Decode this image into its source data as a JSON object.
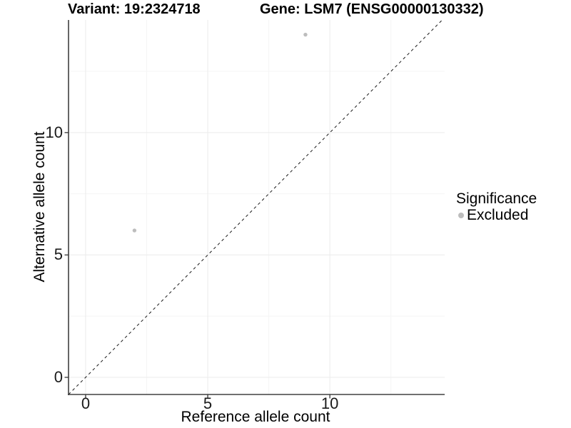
{
  "chart_data": {
    "type": "scatter",
    "titles": {
      "left": "Variant: 19:2324718",
      "right": "Gene: LSM7 (ENSG00000130332)"
    },
    "xlabel": "Reference allele count",
    "ylabel": "Alternative allele count",
    "xlim": [
      -0.7,
      14.7
    ],
    "ylim": [
      -0.7,
      14.6
    ],
    "x_ticks": [
      {
        "value": 0,
        "label": "0"
      },
      {
        "value": 5,
        "label": "5"
      },
      {
        "value": 10,
        "label": "10"
      }
    ],
    "y_ticks": [
      {
        "value": 0,
        "label": "0"
      },
      {
        "value": 5,
        "label": "5"
      },
      {
        "value": 10,
        "label": "10"
      }
    ],
    "x_minor_gridlines": [
      2.5,
      7.5,
      12.5
    ],
    "y_minor_gridlines": [
      2.5,
      7.5,
      12.5
    ],
    "grid": "major+minor",
    "legend_position": "right",
    "series": [
      {
        "name": "Excluded",
        "marker": "circle",
        "color": "#bdbdbd",
        "points": [
          {
            "x": 2,
            "y": 6
          },
          {
            "x": 9,
            "y": 14
          }
        ]
      }
    ],
    "reference_line": {
      "type": "identity",
      "slope": 1,
      "intercept": 0,
      "style": "dashed",
      "color": "#1a1a1a"
    },
    "legend": {
      "title": "Significance",
      "items": [
        {
          "label": "Excluded",
          "marker": "circle",
          "color": "#bdbdbd"
        }
      ]
    },
    "colors": {
      "background": "#ffffff",
      "grid_major": "#ebebeb",
      "grid_minor": "#f5f5f5",
      "axis_line": "#404040",
      "point": "#bdbdbd",
      "text": "#000000"
    }
  }
}
